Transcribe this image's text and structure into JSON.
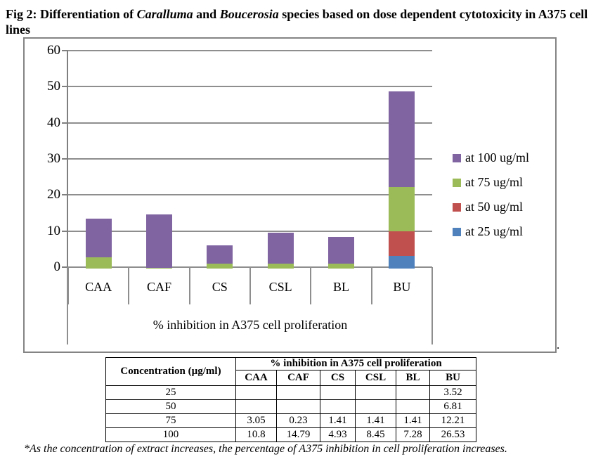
{
  "caption": {
    "segments": [
      {
        "text": "Fig 2: Differentiation of ",
        "style": "bold"
      },
      {
        "text": "Caralluma",
        "style": "bold-italic"
      },
      {
        "text": " and ",
        "style": "bold"
      },
      {
        "text": "Boucerosia",
        "style": "bold-italic"
      },
      {
        "text": " species based on dose dependent cytotoxicity in A375 cell lines",
        "style": "bold"
      }
    ]
  },
  "chart_data": {
    "type": "bar",
    "stacked": true,
    "categories": [
      "CAA",
      "CAF",
      "CS",
      "CSL",
      "BL",
      "BU"
    ],
    "series": [
      {
        "name": "at 25 ug/ml",
        "color": "#4F81BD",
        "values": [
          null,
          null,
          null,
          null,
          null,
          3.52
        ]
      },
      {
        "name": "at 50 ug/ml",
        "color": "#C0504D",
        "values": [
          null,
          null,
          null,
          null,
          null,
          6.81
        ]
      },
      {
        "name": "at 75 ug/ml",
        "color": "#9BBB59",
        "values": [
          3.05,
          0.23,
          1.41,
          1.41,
          1.41,
          12.21
        ]
      },
      {
        "name": "at 100 ug/ml",
        "color": "#8064A2",
        "values": [
          10.8,
          14.79,
          4.93,
          8.45,
          7.28,
          26.53
        ]
      }
    ],
    "legend_order": [
      "at 100 ug/ml",
      "at 75 ug/ml",
      "at 50 ug/ml",
      "at 25 ug/ml"
    ],
    "legend_position": "right",
    "xlabel": "% inhibition in A375 cell proliferation",
    "ylabel": "",
    "ylim": [
      0,
      60
    ],
    "y_ticks": [
      0,
      10,
      20,
      30,
      40,
      50,
      60
    ],
    "grid": true
  },
  "chart_note_period": ".",
  "table": {
    "header_col": "Concentration (µg/ml)",
    "header_span": "% inhibition in A375 cell proliferation",
    "columns": [
      "CAA",
      "CAF",
      "CS",
      "CSL",
      "BL",
      "BU"
    ],
    "rows": [
      {
        "concentration": "25",
        "values": [
          "",
          "",
          "",
          "",
          "",
          "3.52"
        ]
      },
      {
        "concentration": "50",
        "values": [
          "",
          "",
          "",
          "",
          "",
          "6.81"
        ]
      },
      {
        "concentration": "75",
        "values": [
          "3.05",
          "0.23",
          "1.41",
          "1.41",
          "1.41",
          "12.21"
        ]
      },
      {
        "concentration": "100",
        "values": [
          "10.8",
          "14.79",
          "4.93",
          "8.45",
          "7.28",
          "26.53"
        ]
      }
    ]
  },
  "footnote": "*As the concentration of extract increases, the percentage of A375 inhibition  in cell proliferation increases."
}
